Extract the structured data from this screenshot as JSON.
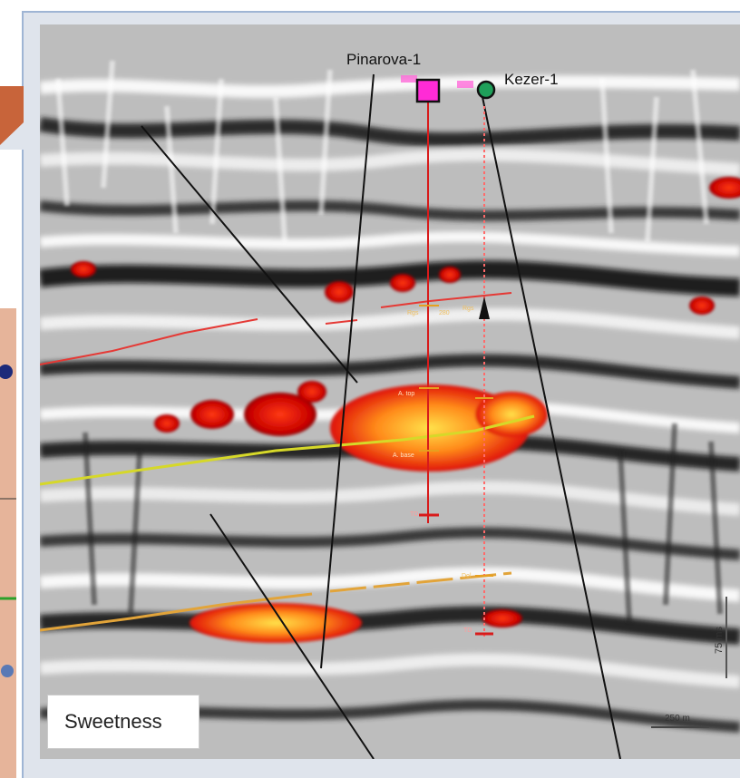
{
  "wells": {
    "well1": {
      "name": "Pinarova-1",
      "color": "#ff2bd6"
    },
    "well2": {
      "name": "Kezer-1",
      "color": "#1fa05a"
    }
  },
  "attribute_label": "Sweetness",
  "scale_bar": "250 m",
  "time_scale": "75 ms",
  "horizon_colors": {
    "top": "#e53935",
    "middle": "#d6d829",
    "bottom": "#e2a43a"
  }
}
